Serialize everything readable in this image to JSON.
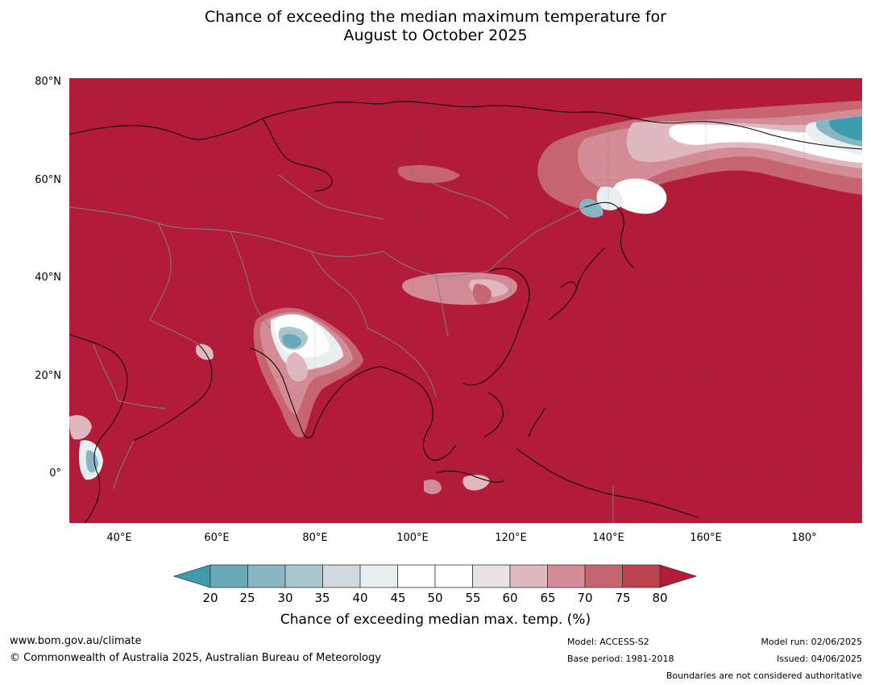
{
  "title": {
    "line1": "Chance of exceeding the median maximum temperature for",
    "line2": "August to October 2025"
  },
  "map": {
    "latitude_labels": [
      "80°N",
      "60°N",
      "40°N",
      "20°N",
      "0°"
    ],
    "longitude_labels": [
      "40°E",
      "60°E",
      "80°E",
      "100°E",
      "120°E",
      "140°E",
      "160°E",
      "180°"
    ],
    "background_color": "#b31b3a",
    "coastline_color": "#000000",
    "border_color": "#808080"
  },
  "colorbar": {
    "labels": [
      "20",
      "25",
      "30",
      "35",
      "40",
      "45",
      "50",
      "55",
      "60",
      "65",
      "70",
      "75",
      "80"
    ],
    "colors": [
      "#3d9dad",
      "#6aa9b8",
      "#88b6c2",
      "#a9c6cc",
      "#d0dadd",
      "#e9eff1",
      "#ffffff",
      "#ffffff",
      "#eae3e5",
      "#e0b8bf",
      "#d38b95",
      "#c76570",
      "#bd4250",
      "#b31b3a"
    ],
    "title": "Chance of exceeding median max. temp. (%)"
  },
  "footer": {
    "website": "www.bom.gov.au/climate",
    "copyright": "© Commonwealth of Australia 2025, Australian Bureau of Meteorology",
    "model": "Model: ACCESS-S2",
    "base_period": "Base period: 1981-2018",
    "model_run": "Model run: 02/06/2025",
    "issued": "Issued: 04/06/2025",
    "boundaries": "Boundaries are not considered authoritative"
  }
}
